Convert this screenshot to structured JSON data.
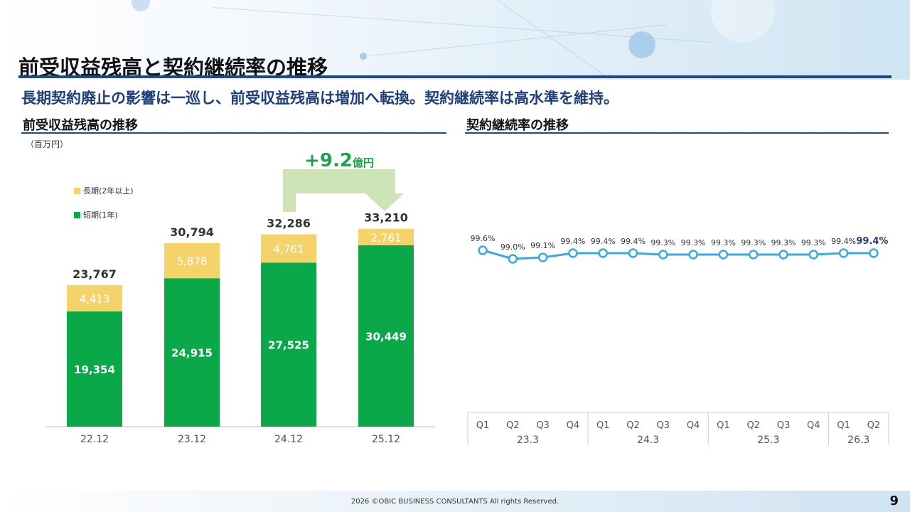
{
  "page_title": "前受収益残高と契約継続率の推移",
  "subtitle": "長期契約廃止の影響は一巡し、前受収益残高は増加へ転換。契約継続率は高水準を維持。",
  "left_section_title": "前受収益残高の推移",
  "right_section_title": "契約継続率の推移",
  "unit": "（百万円）",
  "legend": {
    "long": "長期(2年以上)",
    "short": "短期(1年)"
  },
  "increase_label": {
    "value": "+9.2",
    "unit": "億円"
  },
  "colors": {
    "long": "#f5d36b",
    "short": "#0ba84a",
    "line": "#3aa9dc",
    "accent": "#1e4a8c",
    "arrow": "#cfe4b6"
  },
  "chart_data": [
    {
      "type": "bar",
      "categories": [
        "22.12",
        "23.12",
        "24.12",
        "25.12"
      ],
      "series": [
        {
          "name": "短期(1年)",
          "values": [
            19354,
            24915,
            27525,
            30449
          ]
        },
        {
          "name": "長期(2年以上)",
          "values": [
            4413,
            5878,
            4761,
            2761
          ]
        }
      ],
      "value_labels": {
        "short": [
          "19,354",
          "24,915",
          "27,525",
          "30,449"
        ],
        "long": [
          "4,413",
          "5,878",
          "4,761",
          "2,761"
        ],
        "total": [
          "23,767",
          "30,794",
          "32,286",
          "33,210"
        ]
      },
      "stacked": true,
      "ylim": [
        0,
        40000
      ]
    },
    {
      "type": "line",
      "x_quarters": [
        "Q1",
        "Q2",
        "Q3",
        "Q4",
        "Q1",
        "Q2",
        "Q3",
        "Q4",
        "Q1",
        "Q2",
        "Q3",
        "Q4",
        "Q1",
        "Q2"
      ],
      "x_groups": [
        {
          "label": "23.3",
          "span": 4
        },
        {
          "label": "24.3",
          "span": 4
        },
        {
          "label": "25.3",
          "span": 4
        },
        {
          "label": "26.3",
          "span": 2
        }
      ],
      "values": [
        99.6,
        99.0,
        99.1,
        99.4,
        99.4,
        99.4,
        99.3,
        99.3,
        99.3,
        99.3,
        99.3,
        99.3,
        99.4,
        99.4
      ],
      "value_labels": [
        "99.6%",
        "99.0%",
        "99.1%",
        "99.4%",
        "99.4%",
        "99.4%",
        "99.3%",
        "99.3%",
        "99.3%",
        "99.3%",
        "99.3%",
        "99.3%",
        "99.4%",
        "99.4%"
      ],
      "ylim": [
        98.5,
        99.9
      ]
    }
  ],
  "footer": {
    "copyright": "2026 ©OBIC BUSINESS CONSULTANTS All rights Reserved.",
    "page": "9"
  }
}
